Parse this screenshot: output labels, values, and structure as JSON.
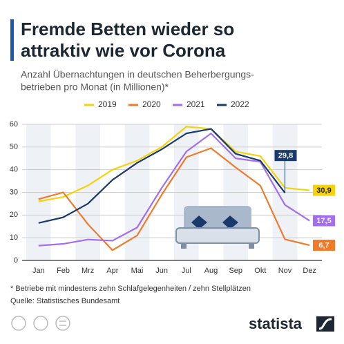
{
  "chart_data": {
    "type": "line",
    "title": [
      "Fremde Betten wieder so",
      "attraktiv wie vor Corona"
    ],
    "subtitle": [
      "Anzahl Übernachtungen in deutschen Beherbergungs-",
      "betrieben pro Monat (in Millionen)*"
    ],
    "categories": [
      "Jan",
      "Feb",
      "Mrz",
      "Apr",
      "Mai",
      "Jun",
      "Jul",
      "Aug",
      "Sep",
      "Okt",
      "Nov",
      "Dez"
    ],
    "series": [
      {
        "name": "2019",
        "color": "#f5d20a",
        "values": [
          26,
          28,
          33,
          40,
          44,
          50,
          59,
          58,
          48,
          46,
          32,
          30.9
        ],
        "value_labels": [
          null,
          null,
          null,
          null,
          null,
          null,
          null,
          null,
          null,
          null,
          null,
          "30,9"
        ]
      },
      {
        "name": "2020",
        "color": "#f07a2a",
        "values": [
          27,
          30,
          16,
          4.5,
          11,
          29,
          45.5,
          49.5,
          41,
          33,
          9.3,
          6.7
        ],
        "value_labels": [
          null,
          null,
          null,
          null,
          null,
          null,
          null,
          null,
          null,
          null,
          null,
          "6,7"
        ]
      },
      {
        "name": "2021",
        "color": "#a46cf0",
        "values": [
          6.5,
          7.3,
          9.2,
          8.7,
          14.5,
          32,
          48,
          56,
          45,
          43.5,
          24.5,
          17.5
        ],
        "value_labels": [
          null,
          null,
          null,
          null,
          null,
          null,
          null,
          null,
          null,
          null,
          null,
          "17,5"
        ]
      },
      {
        "name": "2022",
        "color": "#1a3a6b",
        "values": [
          16.5,
          19,
          25,
          35.5,
          43,
          49,
          56,
          58,
          47,
          44,
          29.8,
          null
        ],
        "value_labels": [
          null,
          null,
          null,
          null,
          null,
          null,
          null,
          null,
          null,
          null,
          "29,8",
          null
        ]
      }
    ],
    "ylim": [
      0,
      60
    ],
    "yticks": [
      0,
      10,
      20,
      30,
      40,
      50,
      60
    ],
    "grid": true,
    "legend": "top",
    "footnote": "* Betriebe mit mindestens zehn Schlafgelegenheiten / zehn Stellplätzen",
    "source": "Quelle: Statistisches Bundesamt",
    "brand": "statista"
  }
}
